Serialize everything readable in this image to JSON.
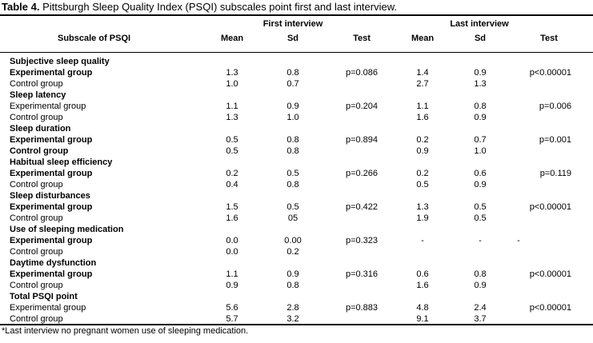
{
  "caption": {
    "label": "Table 4.",
    "text": " Pittsburgh Sleep Quality Index (PSQI) subscales point first and last interview."
  },
  "headers": {
    "first_interview": "First interview",
    "last_interview": "Last interview",
    "subscale": "Subscale of PSQI",
    "mean1": "Mean",
    "sd1": "Sd",
    "test1": "Test",
    "mean2": "Mean",
    "sd2": "Sd",
    "test2": "Test"
  },
  "sections": [
    {
      "title": "Subjective sleep quality",
      "exp": {
        "label": "Experimental group",
        "bold": true,
        "m1": "1.3",
        "s1": "0.8",
        "t1": "p=0.086",
        "m2": "1.4",
        "s2": "0.9",
        "t2": "p<0.00001"
      },
      "ctl": {
        "label": "Control group",
        "bold": false,
        "m1": "1.0",
        "s1": "0.7",
        "m2": "2.7",
        "s2": "1.3"
      }
    },
    {
      "title": "Sleep latency",
      "exp": {
        "label": "Experimental group",
        "bold": false,
        "m1": "1.1",
        "s1": "0.9",
        "t1": "p=0.204",
        "m2": "1.1",
        "s2": "0.8",
        "t2": "p=0.006"
      },
      "ctl": {
        "label": "Control group",
        "bold": false,
        "m1": "1.3",
        "s1": "1.0",
        "m2": "1.6",
        "s2": "0.9"
      }
    },
    {
      "title": "Sleep duration",
      "exp": {
        "label": "Experimental group",
        "bold": true,
        "m1": "0.5",
        "s1": "0.8",
        "t1": "p=0.894",
        "m2": "0.2",
        "s2": "0.7",
        "t2": "p=0.001"
      },
      "ctl": {
        "label": "Control group",
        "bold": true,
        "m1": "0.5",
        "s1": "0.8",
        "m2": "0.9",
        "s2": "1.0"
      }
    },
    {
      "title": "Habitual sleep efficiency",
      "exp": {
        "label": "Experimental group",
        "bold": true,
        "m1": "0.2",
        "s1": "0.5",
        "t1": "p=0.266",
        "m2": "0.2",
        "s2": "0.6",
        "t2": "p=0.119"
      },
      "ctl": {
        "label": "Control group",
        "bold": false,
        "m1": "0.4",
        "s1": "0.8",
        "m2": "0.5",
        "s2": "0.9"
      }
    },
    {
      "title": "Sleep disturbances",
      "exp": {
        "label": "Experimental group",
        "bold": true,
        "m1": "1.5",
        "s1": "0.5",
        "t1": "p=0.422",
        "m2": "1.3",
        "s2": "0.5",
        "t2": "p<0.00001"
      },
      "ctl": {
        "label": "Control group",
        "bold": false,
        "m1": "1.6",
        "s1": "05",
        "m2": "1.9",
        "s2": "0.5"
      }
    },
    {
      "title": "Use of sleeping medication",
      "exp": {
        "label": "Experimental group",
        "bold": true,
        "m1": "0.0",
        "s1": "0.00",
        "t1": "p=0.323",
        "m2": "-",
        "s2": "-",
        "t2": "-"
      },
      "ctl": {
        "label": "Control group",
        "bold": false,
        "m1": "0.0",
        "s1": "0.2",
        "m2": "",
        "s2": ""
      }
    },
    {
      "title": "Daytime dysfunction",
      "exp": {
        "label": "Experimental group",
        "bold": true,
        "m1": "1.1",
        "s1": "0.9",
        "t1": "p=0.316",
        "m2": "0.6",
        "s2": "0.8",
        "t2": "p<0.00001"
      },
      "ctl": {
        "label": "Control group",
        "bold": false,
        "m1": "0.9",
        "s1": "0.8",
        "m2": "1.6",
        "s2": "0.9"
      }
    },
    {
      "title": "Total PSQI point",
      "exp": {
        "label": "Experimental group",
        "bold": false,
        "m1": "5.6",
        "s1": "2.8",
        "t1": "p=0.883",
        "m2": "4.8",
        "s2": "2.4",
        "t2": "p<0.00001"
      },
      "ctl": {
        "label": "Control group",
        "bold": false,
        "m1": "5.7",
        "s1": "3.2",
        "m2": "9.1",
        "s2": "3.7"
      }
    }
  ],
  "footnote": "*Last interview no pregnant women use of sleeping medication."
}
